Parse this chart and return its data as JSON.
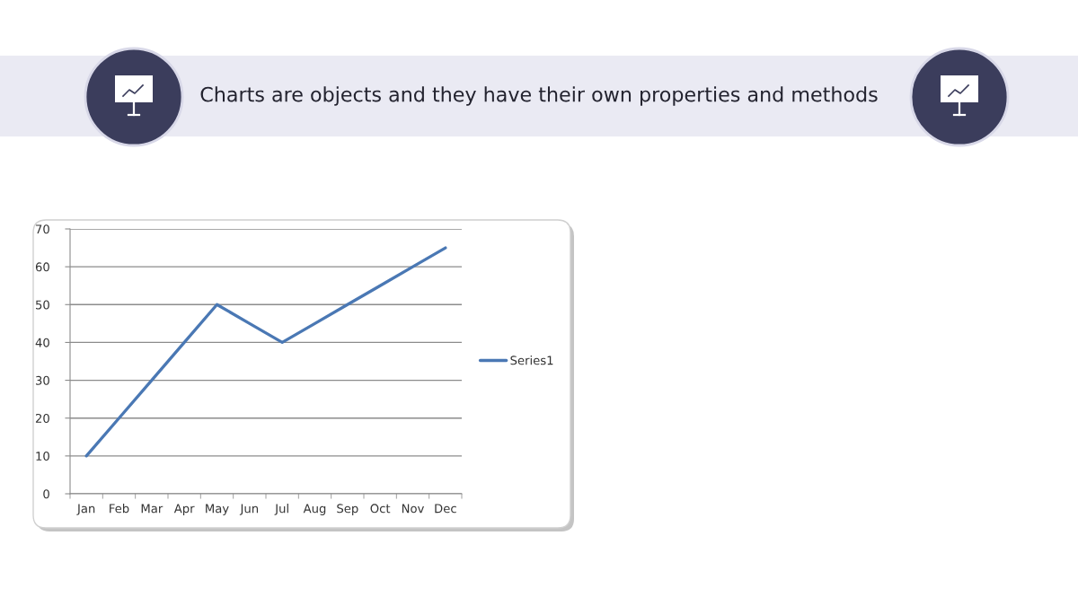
{
  "chart_data": {
    "type": "line",
    "title": "Charts are objects and they have their own properties and methods",
    "categories": [
      "Jan",
      "Feb",
      "Mar",
      "Apr",
      "May",
      "Jun",
      "Jul",
      "Aug",
      "Sep",
      "Oct",
      "Nov",
      "Dec"
    ],
    "series": [
      {
        "name": "Series1",
        "color": "#4a78b4",
        "values": [
          10,
          20,
          30,
          40,
          50,
          45,
          40,
          45,
          50,
          55,
          60,
          65
        ]
      }
    ],
    "ylim": [
      0,
      70
    ],
    "yticks": [
      0,
      10,
      20,
      30,
      40,
      50,
      60,
      70
    ],
    "grid": "y",
    "legend": "right"
  }
}
